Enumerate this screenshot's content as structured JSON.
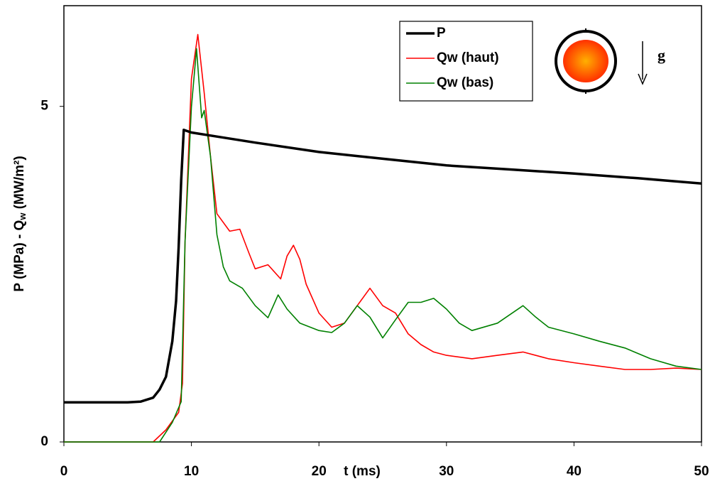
{
  "chart_data": {
    "type": "line",
    "x_label": "t (ms)",
    "y_label": [
      "P (MPa) - Q",
      "w",
      " (MW/m²)"
    ],
    "annotation": "g",
    "xlim": [
      0,
      50
    ],
    "xticks": [
      0,
      10,
      20,
      30,
      40,
      50
    ],
    "ylim": [
      0,
      6.5
    ],
    "yticks": [
      0,
      5
    ],
    "series": [
      {
        "name": "P",
        "color": "#000000",
        "x": [
          0,
          5,
          6,
          7,
          7.5,
          8,
          8.5,
          8.8,
          9,
          9.2,
          9.4,
          10,
          12,
          15,
          20,
          25,
          30,
          35,
          40,
          45,
          50
        ],
        "values": [
          0.59,
          0.59,
          0.6,
          0.66,
          0.78,
          0.97,
          1.5,
          2.1,
          2.9,
          3.9,
          4.65,
          4.61,
          4.55,
          4.46,
          4.32,
          4.22,
          4.12,
          4.06,
          4.0,
          3.93,
          3.85
        ]
      },
      {
        "name": "Qw (haut)",
        "color": "#ff0000",
        "x": [
          0,
          7,
          8,
          9,
          9.3,
          9.5,
          10,
          10.5,
          11,
          11.5,
          12,
          13,
          13.8,
          14.5,
          15,
          16,
          17,
          17.5,
          18,
          18.5,
          19,
          20,
          21,
          22,
          23,
          24,
          25,
          26,
          27,
          28,
          29,
          30,
          32,
          34,
          36,
          38,
          40,
          42,
          44,
          46,
          48,
          50
        ],
        "values": [
          0,
          0,
          0.18,
          0.44,
          0.87,
          2.98,
          5.41,
          6.07,
          5.2,
          4.25,
          3.4,
          3.14,
          3.17,
          2.82,
          2.58,
          2.64,
          2.43,
          2.77,
          2.93,
          2.72,
          2.35,
          1.92,
          1.71,
          1.77,
          2.03,
          2.29,
          2.03,
          1.92,
          1.61,
          1.45,
          1.34,
          1.29,
          1.24,
          1.29,
          1.34,
          1.24,
          1.18,
          1.13,
          1.08,
          1.08,
          1.1,
          1.08
        ]
      },
      {
        "name": "Qw (bas)",
        "color": "#008000",
        "x": [
          0,
          7.5,
          8.5,
          9.2,
          9.5,
          10,
          10.4,
          10.8,
          11,
          11.5,
          12,
          12.5,
          13,
          14,
          15,
          16,
          16.8,
          17.5,
          18.5,
          20,
          21,
          22,
          23,
          24,
          25,
          26,
          27,
          28,
          29,
          30,
          31,
          32,
          34,
          36,
          37,
          38,
          40,
          42,
          44,
          46,
          48,
          50
        ],
        "values": [
          0,
          0,
          0.29,
          0.6,
          2.98,
          4.99,
          5.86,
          4.83,
          4.94,
          4.25,
          3.09,
          2.61,
          2.4,
          2.29,
          2.03,
          1.85,
          2.19,
          1.98,
          1.77,
          1.66,
          1.63,
          1.77,
          2.03,
          1.86,
          1.55,
          1.82,
          2.08,
          2.08,
          2.14,
          1.98,
          1.77,
          1.66,
          1.77,
          2.03,
          1.86,
          1.71,
          1.61,
          1.5,
          1.4,
          1.24,
          1.13,
          1.08
        ]
      }
    ]
  }
}
